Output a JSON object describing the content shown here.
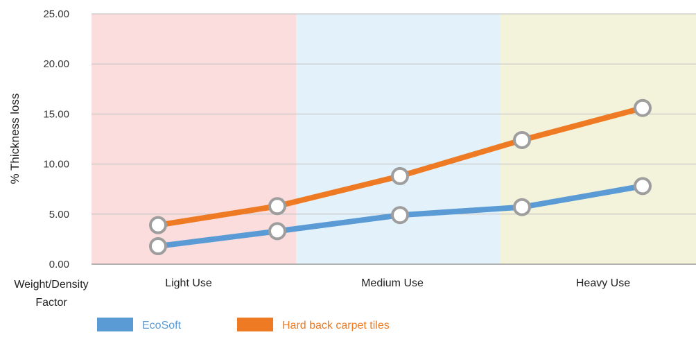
{
  "chart_data": {
    "type": "line",
    "title": "",
    "ylabel": "% Thickness loss",
    "xlabel": "Weight/Density Factor",
    "ylim": [
      0,
      25
    ],
    "yticks": [
      "0.00",
      "5.00",
      "10.00",
      "15.00",
      "20.00",
      "25.00"
    ],
    "grid": true,
    "x_points": [
      1,
      2,
      3,
      4,
      5
    ],
    "zones": [
      {
        "label": "Light Use",
        "color": "#fbdddd"
      },
      {
        "label": "Medium Use",
        "color": "#e3f2fa"
      },
      {
        "label": "Heavy Use",
        "color": "#f2f3da"
      }
    ],
    "series": [
      {
        "name": "EcoSoft",
        "color": "#5b9bd5",
        "values": [
          1.8,
          3.3,
          4.9,
          5.7,
          7.8
        ]
      },
      {
        "name": "Hard back carpet tiles",
        "color": "#ee7a23",
        "values": [
          3.9,
          5.8,
          8.8,
          12.4,
          15.6
        ]
      }
    ],
    "legend_position": "bottom"
  }
}
